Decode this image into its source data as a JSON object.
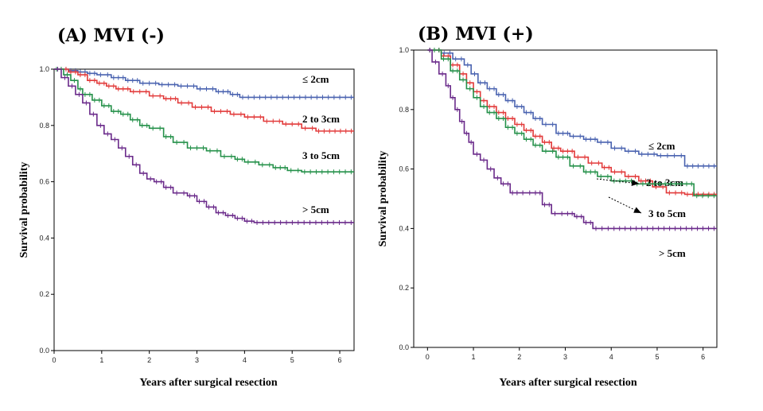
{
  "chart_data": [
    {
      "type": "line",
      "title": "(A) MVI (-)",
      "xlabel": "Years after surgical resection",
      "ylabel": "Survival probability",
      "xlim": [
        0,
        6.3
      ],
      "ylim": [
        0,
        1.0
      ],
      "xticks": [
        "0",
        "1",
        "2",
        "3",
        "4",
        "5",
        "6"
      ],
      "yticks": [
        "0.0",
        "0.2",
        "0.4",
        "0.6",
        "0.8",
        "1.0"
      ],
      "grid": false,
      "series": [
        {
          "name": "≤ 2cm",
          "color": "#4a63b0",
          "x": [
            0,
            0.3,
            0.5,
            0.7,
            0.9,
            1.2,
            1.5,
            1.8,
            2.2,
            2.6,
            3.0,
            3.4,
            3.7,
            3.9,
            6.3
          ],
          "y": [
            1.0,
            0.995,
            0.99,
            0.985,
            0.98,
            0.97,
            0.96,
            0.95,
            0.945,
            0.94,
            0.93,
            0.92,
            0.91,
            0.9,
            0.9
          ]
        },
        {
          "name": "2 to 3cm",
          "color": "#e23a3a",
          "x": [
            0,
            0.3,
            0.5,
            0.7,
            0.9,
            1.1,
            1.3,
            1.6,
            2.0,
            2.3,
            2.6,
            2.9,
            3.3,
            3.7,
            4.0,
            4.4,
            4.8,
            5.2,
            5.5,
            6.3
          ],
          "y": [
            1.0,
            0.99,
            0.98,
            0.96,
            0.95,
            0.94,
            0.93,
            0.92,
            0.905,
            0.895,
            0.88,
            0.865,
            0.85,
            0.84,
            0.83,
            0.815,
            0.805,
            0.79,
            0.78,
            0.78
          ]
        },
        {
          "name": "3 to 5cm",
          "color": "#25914a",
          "x": [
            0,
            0.2,
            0.35,
            0.5,
            0.6,
            0.8,
            1.0,
            1.2,
            1.4,
            1.6,
            1.8,
            2.0,
            2.3,
            2.5,
            2.8,
            3.2,
            3.5,
            3.8,
            4.0,
            4.3,
            4.6,
            4.9,
            5.2,
            6.3
          ],
          "y": [
            1.0,
            0.98,
            0.96,
            0.93,
            0.91,
            0.89,
            0.87,
            0.85,
            0.84,
            0.82,
            0.8,
            0.79,
            0.76,
            0.74,
            0.72,
            0.71,
            0.69,
            0.68,
            0.67,
            0.66,
            0.65,
            0.64,
            0.635,
            0.635
          ]
        },
        {
          "name": "> 5cm",
          "color": "#6a2a8a",
          "x": [
            0,
            0.15,
            0.3,
            0.45,
            0.6,
            0.75,
            0.9,
            1.05,
            1.2,
            1.35,
            1.5,
            1.65,
            1.8,
            1.95,
            2.1,
            2.3,
            2.5,
            2.8,
            3.0,
            3.2,
            3.4,
            3.6,
            3.8,
            4.0,
            4.2,
            6.3
          ],
          "y": [
            1.0,
            0.97,
            0.94,
            0.91,
            0.88,
            0.84,
            0.8,
            0.77,
            0.75,
            0.72,
            0.69,
            0.66,
            0.63,
            0.61,
            0.6,
            0.58,
            0.56,
            0.55,
            0.53,
            0.51,
            0.49,
            0.48,
            0.47,
            0.46,
            0.455,
            0.455
          ]
        }
      ]
    },
    {
      "type": "line",
      "title": "(B) MVI (+)",
      "xlabel": "Years after surgical resection",
      "ylabel": "Survival probability",
      "xlim": [
        -0.3,
        6.3
      ],
      "ylim": [
        0,
        1.0
      ],
      "xticks": [
        "0",
        "1",
        "2",
        "3",
        "4",
        "5",
        "6"
      ],
      "yticks": [
        "0.0",
        "0.2",
        "0.4",
        "0.6",
        "0.8",
        "1.0"
      ],
      "grid": false,
      "series": [
        {
          "name": "≤ 2cm",
          "color": "#4a63b0",
          "x": [
            0,
            0.3,
            0.55,
            0.8,
            0.95,
            1.1,
            1.3,
            1.5,
            1.7,
            1.9,
            2.1,
            2.3,
            2.5,
            2.8,
            3.1,
            3.4,
            3.7,
            4.0,
            4.3,
            4.6,
            5.0,
            5.3,
            5.6,
            6.3
          ],
          "y": [
            1.0,
            0.99,
            0.97,
            0.95,
            0.92,
            0.89,
            0.87,
            0.85,
            0.83,
            0.81,
            0.79,
            0.77,
            0.75,
            0.72,
            0.71,
            0.7,
            0.69,
            0.67,
            0.66,
            0.65,
            0.645,
            0.645,
            0.61,
            0.61
          ]
        },
        {
          "name": "2 to 3cm",
          "color": "#e23a3a",
          "x": [
            0,
            0.3,
            0.5,
            0.7,
            0.85,
            1.0,
            1.15,
            1.3,
            1.5,
            1.7,
            1.9,
            2.1,
            2.3,
            2.5,
            2.7,
            2.9,
            3.2,
            3.5,
            3.8,
            4.0,
            4.3,
            4.6,
            4.9,
            5.2,
            5.6,
            6.3
          ],
          "y": [
            1.0,
            0.98,
            0.95,
            0.92,
            0.89,
            0.86,
            0.83,
            0.81,
            0.79,
            0.77,
            0.75,
            0.73,
            0.71,
            0.69,
            0.67,
            0.66,
            0.64,
            0.62,
            0.605,
            0.59,
            0.575,
            0.56,
            0.54,
            0.52,
            0.515,
            0.515
          ]
        },
        {
          "name": "3 to 5cm",
          "color": "#25914a",
          "x": [
            0,
            0.3,
            0.5,
            0.7,
            0.85,
            1.0,
            1.15,
            1.3,
            1.5,
            1.7,
            1.9,
            2.1,
            2.3,
            2.5,
            2.8,
            3.1,
            3.4,
            3.7,
            4.0,
            4.5,
            5.0,
            5.7,
            5.8,
            6.3
          ],
          "y": [
            1.0,
            0.97,
            0.93,
            0.9,
            0.87,
            0.84,
            0.81,
            0.79,
            0.77,
            0.74,
            0.72,
            0.7,
            0.68,
            0.66,
            0.64,
            0.61,
            0.59,
            0.575,
            0.56,
            0.55,
            0.55,
            0.55,
            0.51,
            0.51
          ]
        },
        {
          "name": "> 5cm",
          "color": "#6a2a8a",
          "x": [
            0,
            0.1,
            0.25,
            0.4,
            0.5,
            0.6,
            0.7,
            0.8,
            0.9,
            1.0,
            1.15,
            1.3,
            1.45,
            1.6,
            1.8,
            2.0,
            2.3,
            2.5,
            2.7,
            3.0,
            3.2,
            3.4,
            3.6,
            4.0,
            6.3
          ],
          "y": [
            1.0,
            0.96,
            0.92,
            0.88,
            0.84,
            0.8,
            0.76,
            0.72,
            0.69,
            0.65,
            0.63,
            0.6,
            0.57,
            0.55,
            0.52,
            0.52,
            0.52,
            0.48,
            0.45,
            0.45,
            0.44,
            0.42,
            0.4,
            0.4,
            0.4
          ]
        }
      ]
    }
  ]
}
